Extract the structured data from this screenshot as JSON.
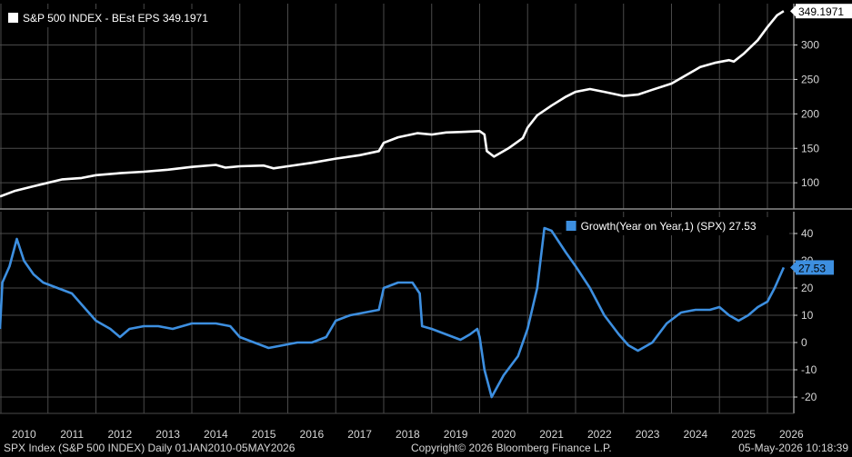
{
  "footer": {
    "source": "SPX Index (S&P 500 INDEX) Daily 01JAN2010-05MAY2026",
    "copyright": "Copyright© 2026 Bloomberg Finance L.P.",
    "timestamp": "05-May-2026 10:18:39"
  },
  "colors": {
    "background": "#000000",
    "grid": "#4a4a4a",
    "eps_line": "#ffffff",
    "growth_line": "#3d8fe0",
    "axis_text": "#d6d6d6"
  },
  "chart_data": [
    {
      "type": "line",
      "title": "",
      "xlabel": "",
      "ylabel": "",
      "legend": {
        "label": "S&P 500 INDEX - BEst EPS 349.1971",
        "placement": "top-left"
      },
      "last_value_label": "349.1971",
      "y_ticks": [
        100,
        150,
        200,
        250,
        300
      ],
      "ylim": [
        62,
        360
      ],
      "grid": true,
      "series": [
        {
          "name": "S&P 500 INDEX - BEst EPS",
          "points": [
            [
              2010.0,
              80
            ],
            [
              2010.3,
              88
            ],
            [
              2010.7,
              95
            ],
            [
              2011.0,
              100
            ],
            [
              2011.3,
              105
            ],
            [
              2011.7,
              107
            ],
            [
              2012.0,
              111
            ],
            [
              2012.5,
              114
            ],
            [
              2013.0,
              116
            ],
            [
              2013.5,
              119
            ],
            [
              2014.0,
              123
            ],
            [
              2014.5,
              126
            ],
            [
              2014.7,
              122
            ],
            [
              2015.0,
              124
            ],
            [
              2015.5,
              125
            ],
            [
              2015.7,
              121
            ],
            [
              2016.0,
              124
            ],
            [
              2016.5,
              129
            ],
            [
              2017.0,
              135
            ],
            [
              2017.5,
              140
            ],
            [
              2017.9,
              146
            ],
            [
              2018.0,
              158
            ],
            [
              2018.3,
              166
            ],
            [
              2018.7,
              172
            ],
            [
              2019.0,
              170
            ],
            [
              2019.3,
              173
            ],
            [
              2019.7,
              174
            ],
            [
              2020.0,
              175
            ],
            [
              2020.1,
              170
            ],
            [
              2020.15,
              146
            ],
            [
              2020.3,
              138
            ],
            [
              2020.6,
              150
            ],
            [
              2020.9,
              165
            ],
            [
              2021.0,
              180
            ],
            [
              2021.2,
              198
            ],
            [
              2021.5,
              212
            ],
            [
              2021.8,
              225
            ],
            [
              2022.0,
              232
            ],
            [
              2022.3,
              236
            ],
            [
              2022.6,
              232
            ],
            [
              2023.0,
              226
            ],
            [
              2023.3,
              228
            ],
            [
              2023.6,
              235
            ],
            [
              2024.0,
              244
            ],
            [
              2024.3,
              256
            ],
            [
              2024.6,
              268
            ],
            [
              2024.9,
              274
            ],
            [
              2025.2,
              278
            ],
            [
              2025.3,
              276
            ],
            [
              2025.5,
              287
            ],
            [
              2025.8,
              307
            ],
            [
              2026.0,
              326
            ],
            [
              2026.2,
              343
            ],
            [
              2026.34,
              349.1971
            ]
          ]
        }
      ]
    },
    {
      "type": "line",
      "title": "",
      "xlabel": "",
      "ylabel": "",
      "legend": {
        "label": "Growth(Year on Year,1) (SPX) 27.53",
        "placement": "top-right"
      },
      "last_value_label": "27.53",
      "y_ticks": [
        -20,
        -10,
        0,
        10,
        20,
        30,
        40
      ],
      "ylim": [
        -26,
        48
      ],
      "grid": true,
      "x_ticks": [
        "2010",
        "2011",
        "2012",
        "2013",
        "2014",
        "2015",
        "2016",
        "2017",
        "2018",
        "2019",
        "2020",
        "2021",
        "2022",
        "2023",
        "2024",
        "2025",
        "2026"
      ],
      "series": [
        {
          "name": "Growth(Year on Year,1)",
          "points": [
            [
              2010.0,
              5
            ],
            [
              2010.05,
              22
            ],
            [
              2010.2,
              28
            ],
            [
              2010.35,
              38
            ],
            [
              2010.5,
              30
            ],
            [
              2010.7,
              25
            ],
            [
              2010.9,
              22
            ],
            [
              2011.2,
              20
            ],
            [
              2011.5,
              18
            ],
            [
              2011.8,
              12
            ],
            [
              2012.0,
              8
            ],
            [
              2012.3,
              5
            ],
            [
              2012.5,
              2
            ],
            [
              2012.7,
              5
            ],
            [
              2013.0,
              6
            ],
            [
              2013.3,
              6
            ],
            [
              2013.6,
              5
            ],
            [
              2014.0,
              7
            ],
            [
              2014.5,
              7
            ],
            [
              2014.8,
              6
            ],
            [
              2015.0,
              2
            ],
            [
              2015.3,
              0
            ],
            [
              2015.6,
              -2
            ],
            [
              2015.9,
              -1
            ],
            [
              2016.2,
              0
            ],
            [
              2016.5,
              0
            ],
            [
              2016.8,
              2
            ],
            [
              2017.0,
              8
            ],
            [
              2017.3,
              10
            ],
            [
              2017.6,
              11
            ],
            [
              2017.9,
              12
            ],
            [
              2018.0,
              20
            ],
            [
              2018.3,
              22
            ],
            [
              2018.6,
              22
            ],
            [
              2018.75,
              18
            ],
            [
              2018.8,
              6
            ],
            [
              2019.0,
              5
            ],
            [
              2019.3,
              3
            ],
            [
              2019.6,
              1
            ],
            [
              2019.8,
              3
            ],
            [
              2019.95,
              5
            ],
            [
              2020.0,
              2
            ],
            [
              2020.1,
              -10
            ],
            [
              2020.25,
              -20
            ],
            [
              2020.5,
              -12
            ],
            [
              2020.8,
              -5
            ],
            [
              2021.0,
              5
            ],
            [
              2021.2,
              20
            ],
            [
              2021.35,
              42
            ],
            [
              2021.5,
              41
            ],
            [
              2021.8,
              33
            ],
            [
              2022.0,
              28
            ],
            [
              2022.3,
              20
            ],
            [
              2022.6,
              10
            ],
            [
              2022.9,
              3
            ],
            [
              2023.1,
              -1
            ],
            [
              2023.3,
              -3
            ],
            [
              2023.6,
              0
            ],
            [
              2023.9,
              7
            ],
            [
              2024.2,
              11
            ],
            [
              2024.5,
              12
            ],
            [
              2024.8,
              12
            ],
            [
              2025.0,
              13
            ],
            [
              2025.2,
              10
            ],
            [
              2025.4,
              8
            ],
            [
              2025.6,
              10
            ],
            [
              2025.8,
              13
            ],
            [
              2026.0,
              15
            ],
            [
              2026.15,
              20
            ],
            [
              2026.34,
              27.53
            ]
          ]
        }
      ]
    }
  ]
}
